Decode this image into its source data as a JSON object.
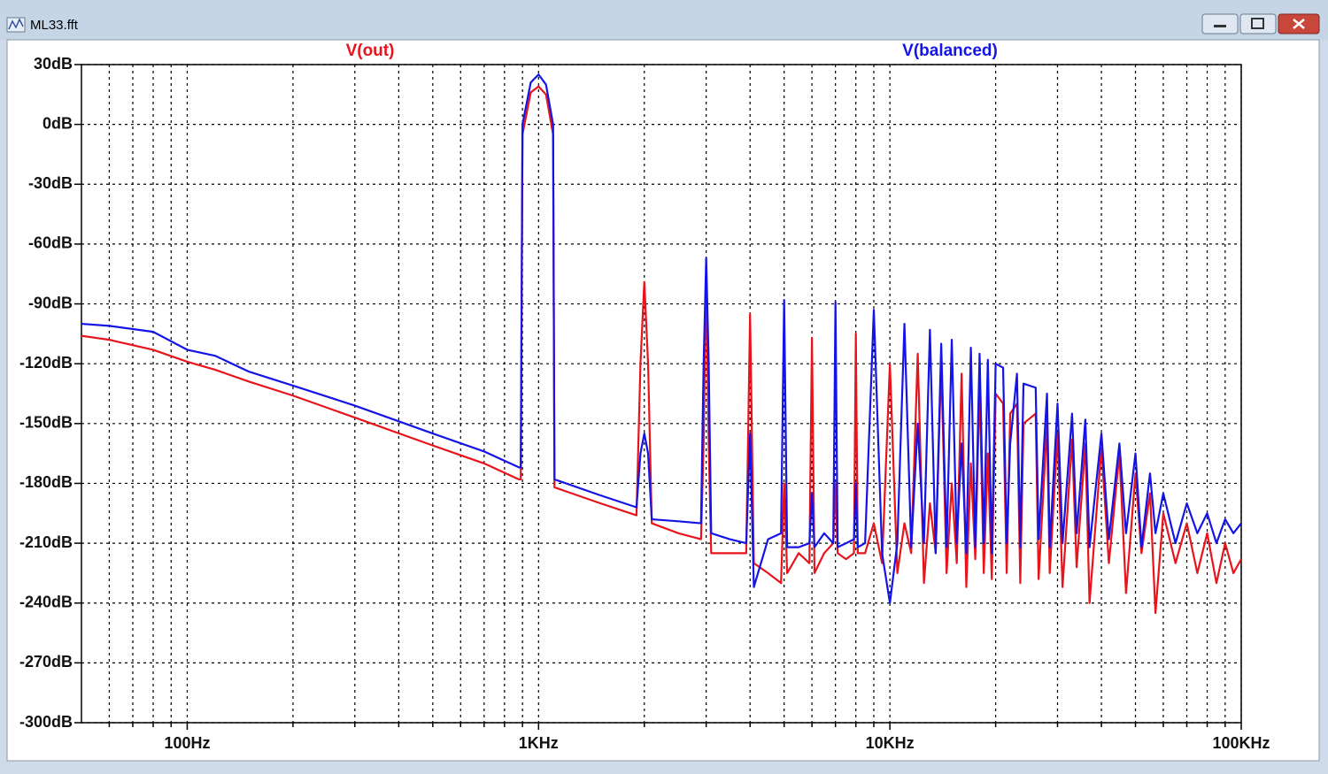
{
  "window_title": "ML33.fft",
  "chart_data": {
    "type": "line",
    "x_scale": "log",
    "grid": true,
    "xlim": [
      50,
      100000
    ],
    "ylim": [
      -300,
      30
    ],
    "xticks": [
      {
        "value": 100,
        "label": "100Hz"
      },
      {
        "value": 1000,
        "label": "1KHz"
      },
      {
        "value": 10000,
        "label": "10KHz"
      },
      {
        "value": 100000,
        "label": "100KHz"
      }
    ],
    "xminor_ticks": [
      60,
      70,
      80,
      90,
      200,
      300,
      400,
      500,
      600,
      700,
      800,
      900,
      2000,
      3000,
      4000,
      5000,
      6000,
      7000,
      8000,
      9000,
      20000,
      30000,
      40000,
      50000,
      60000,
      70000,
      80000,
      90000
    ],
    "yticks": [
      {
        "value": 30,
        "label": "30dB"
      },
      {
        "value": 0,
        "label": "0dB"
      },
      {
        "value": -30,
        "label": "-30dB"
      },
      {
        "value": -60,
        "label": "-60dB"
      },
      {
        "value": -90,
        "label": "-90dB"
      },
      {
        "value": -120,
        "label": "-120dB"
      },
      {
        "value": -150,
        "label": "-150dB"
      },
      {
        "value": -180,
        "label": "-180dB"
      },
      {
        "value": -210,
        "label": "-210dB"
      },
      {
        "value": -240,
        "label": "-240dB"
      },
      {
        "value": -270,
        "label": "-270dB"
      },
      {
        "value": -300,
        "label": "-300dB"
      }
    ],
    "series": [
      {
        "name": "V(out)",
        "color": "#e8141c",
        "x": [
          50,
          60,
          80,
          100,
          120,
          150,
          200,
          300,
          500,
          700,
          880,
          890,
          900,
          950,
          1000,
          1050,
          1100,
          1110,
          1500,
          1900,
          1950,
          2000,
          2050,
          2100,
          2500,
          2900,
          2950,
          3000,
          3050,
          3100,
          3500,
          3900,
          4000,
          4100,
          4500,
          4900,
          5000,
          5100,
          5500,
          5900,
          6000,
          6100,
          6500,
          6900,
          7000,
          7100,
          7500,
          7900,
          8000,
          8100,
          8500,
          9000,
          9500,
          10000,
          10500,
          11000,
          11500,
          12000,
          12500,
          13000,
          13500,
          14000,
          14500,
          15000,
          15500,
          16000,
          16500,
          17000,
          17500,
          18000,
          18500,
          19000,
          19500,
          20000,
          21000,
          21500,
          22000,
          23000,
          23500,
          24000,
          26000,
          26500,
          28000,
          28500,
          30000,
          31000,
          33000,
          34000,
          36000,
          37000,
          40000,
          42000,
          45000,
          47000,
          50000,
          52000,
          55000,
          57000,
          60000,
          65000,
          70000,
          75000,
          80000,
          85000,
          90000,
          95000,
          100000
        ],
        "values": [
          -106,
          -108,
          -113,
          -119,
          -123,
          -129,
          -136,
          -147,
          -161,
          -170,
          -178,
          -178,
          -5,
          16,
          19,
          15,
          -5,
          -182,
          -190,
          -196,
          -120,
          -79,
          -120,
          -200,
          -205,
          -208,
          -160,
          -73,
          -160,
          -215,
          -215,
          -215,
          -95,
          -220,
          -225,
          -230,
          -180,
          -225,
          -215,
          -220,
          -107,
          -225,
          -215,
          -210,
          -180,
          -215,
          -218,
          -215,
          -105,
          -215,
          -215,
          -200,
          -220,
          -120,
          -225,
          -200,
          -215,
          -115,
          -230,
          -190,
          -215,
          -120,
          -225,
          -180,
          -220,
          -125,
          -232,
          -170,
          -218,
          -130,
          -225,
          -165,
          -228,
          -135,
          -140,
          -225,
          -145,
          -140,
          -230,
          -150,
          -145,
          -228,
          -150,
          -225,
          -155,
          -232,
          -158,
          -222,
          -160,
          -240,
          -162,
          -220,
          -165,
          -235,
          -175,
          -215,
          -185,
          -245,
          -195,
          -220,
          -200,
          -225,
          -205,
          -230,
          -210,
          -225,
          -218
        ]
      },
      {
        "name": "V(balanced)",
        "color": "#1414e6",
        "x": [
          50,
          60,
          80,
          100,
          120,
          150,
          200,
          300,
          500,
          700,
          880,
          890,
          900,
          950,
          1000,
          1050,
          1100,
          1110,
          1500,
          1900,
          1950,
          2000,
          2050,
          2100,
          2500,
          2900,
          2950,
          3000,
          3050,
          3100,
          3500,
          3900,
          4000,
          4100,
          4500,
          4900,
          5000,
          5100,
          5500,
          5900,
          6000,
          6100,
          6500,
          6900,
          7000,
          7100,
          7500,
          7900,
          8000,
          8100,
          8500,
          9000,
          9500,
          10000,
          10500,
          11000,
          11500,
          12000,
          12500,
          13000,
          13500,
          14000,
          14500,
          15000,
          15500,
          16000,
          16500,
          17000,
          17500,
          18000,
          18500,
          19000,
          19500,
          20000,
          21000,
          21500,
          22000,
          23000,
          23500,
          24000,
          26000,
          26500,
          28000,
          28500,
          30000,
          31000,
          33000,
          34000,
          36000,
          37000,
          40000,
          42000,
          45000,
          47000,
          50000,
          52000,
          55000,
          57000,
          60000,
          65000,
          70000,
          75000,
          80000,
          85000,
          90000,
          95000,
          100000
        ],
        "values": [
          -100,
          -101,
          -104,
          -113,
          -116,
          -124,
          -131,
          -141,
          -155,
          -164,
          -172,
          -172,
          0,
          21,
          25,
          20,
          0,
          -178,
          -186,
          -192,
          -165,
          -155,
          -165,
          -198,
          -199,
          -200,
          -120,
          -67,
          -120,
          -205,
          -208,
          -210,
          -155,
          -232,
          -208,
          -205,
          -88,
          -212,
          -212,
          -210,
          -185,
          -212,
          -205,
          -210,
          -89,
          -212,
          -210,
          -208,
          -180,
          -212,
          -210,
          -93,
          -215,
          -240,
          -210,
          -100,
          -212,
          -150,
          -210,
          -103,
          -215,
          -110,
          -212,
          -108,
          -210,
          -160,
          -215,
          -112,
          -212,
          -115,
          -210,
          -118,
          -215,
          -120,
          -122,
          -210,
          -160,
          -125,
          -212,
          -130,
          -132,
          -208,
          -135,
          -212,
          -140,
          -210,
          -145,
          -205,
          -148,
          -212,
          -155,
          -208,
          -160,
          -205,
          -165,
          -212,
          -175,
          -205,
          -185,
          -210,
          -190,
          -205,
          -195,
          -210,
          -198,
          -205,
          -200
        ]
      }
    ]
  }
}
